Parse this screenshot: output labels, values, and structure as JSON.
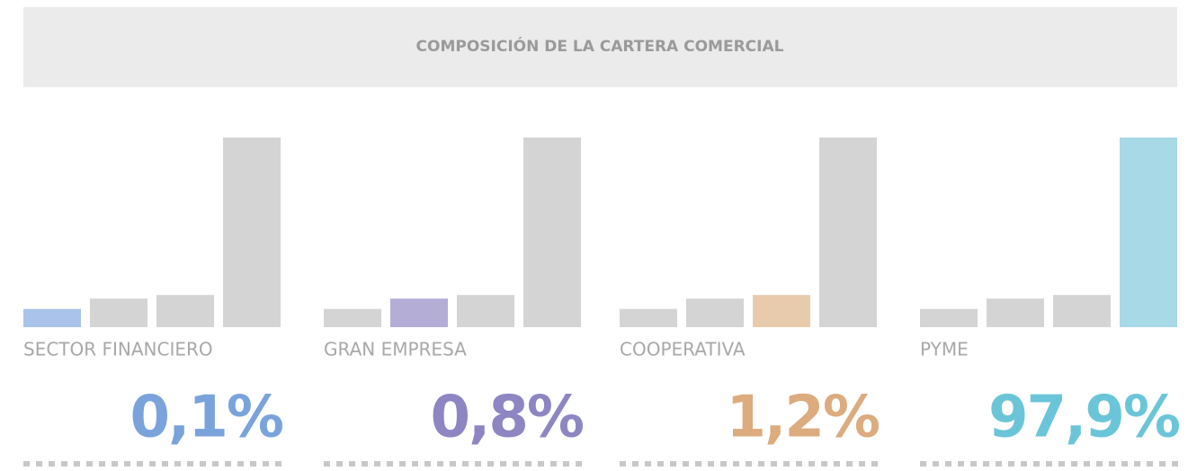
{
  "chart_data": {
    "type": "bar",
    "title": "COMPOSICIÓN DE LA CARTERA COMERCIAL",
    "categories": [
      "SECTOR FINANCIERO",
      "GRAN EMPRESA",
      "COOPERATIVA",
      "PYME"
    ],
    "values": [
      0.1,
      0.8,
      1.2,
      97.9
    ],
    "value_labels": [
      "0,1%",
      "0,8%",
      "1,2%",
      "97,9%"
    ],
    "colors": [
      "#a9c3ea",
      "#b4aed7",
      "#e8cbac",
      "#a7d9e7"
    ],
    "label_colors": [
      "#7aa3dc",
      "#8d86c3",
      "#dcab7e",
      "#6bc5d9"
    ],
    "base_color": "#d4d4d4"
  }
}
